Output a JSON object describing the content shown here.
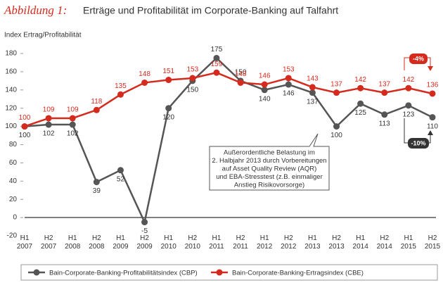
{
  "chart_data": {
    "type": "line",
    "title_prefix": "Abbildung 1:",
    "title": "Erträge und Profitabilität im Corporate-Banking auf Talfahrt",
    "y_label": "Index Ertrag/Profitabilität",
    "categories": [
      "H1 2007",
      "H2 2007",
      "H1 2008",
      "H2 2008",
      "H1 2009",
      "H2 2009",
      "H1 2010",
      "H2 2010",
      "H1 2011",
      "H2 2011",
      "H1 2012",
      "H2 2012",
      "H1 2013",
      "H2 2013",
      "H1 2014",
      "H2 2014",
      "H1 2015",
      "H2 2015"
    ],
    "series": [
      {
        "name": "Bain-Corporate-Banking-Profitabilitätsindex (CBP)",
        "color": "#555555",
        "values": [
          100,
          102,
          102,
          39,
          52,
          -5,
          120,
          150,
          175,
          150,
          140,
          146,
          137,
          100,
          125,
          113,
          123,
          110
        ]
      },
      {
        "name": "Bain-Corporate-Banking-Ertragsindex (CBE)",
        "color": "#d52b1e",
        "values": [
          100,
          109,
          109,
          118,
          135,
          148,
          151,
          153,
          159,
          148,
          146,
          153,
          143,
          137,
          142,
          137,
          142,
          136
        ]
      }
    ],
    "ylim": [
      -20,
      180
    ],
    "yticks": [
      -20,
      0,
      20,
      40,
      60,
      80,
      100,
      120,
      140,
      160,
      180
    ],
    "annotations": {
      "note": [
        "Außerordentliche Belastung im",
        "2. Halbjahr 2013 durch Vorbereitungen",
        "auf Asset Quality Review (AQR)",
        "und EBA-Stresstest (z.B. einmaliger",
        "Anstieg Risikovorsorge)"
      ],
      "cbe_change": "-4%",
      "cbp_change": "-10%"
    }
  }
}
